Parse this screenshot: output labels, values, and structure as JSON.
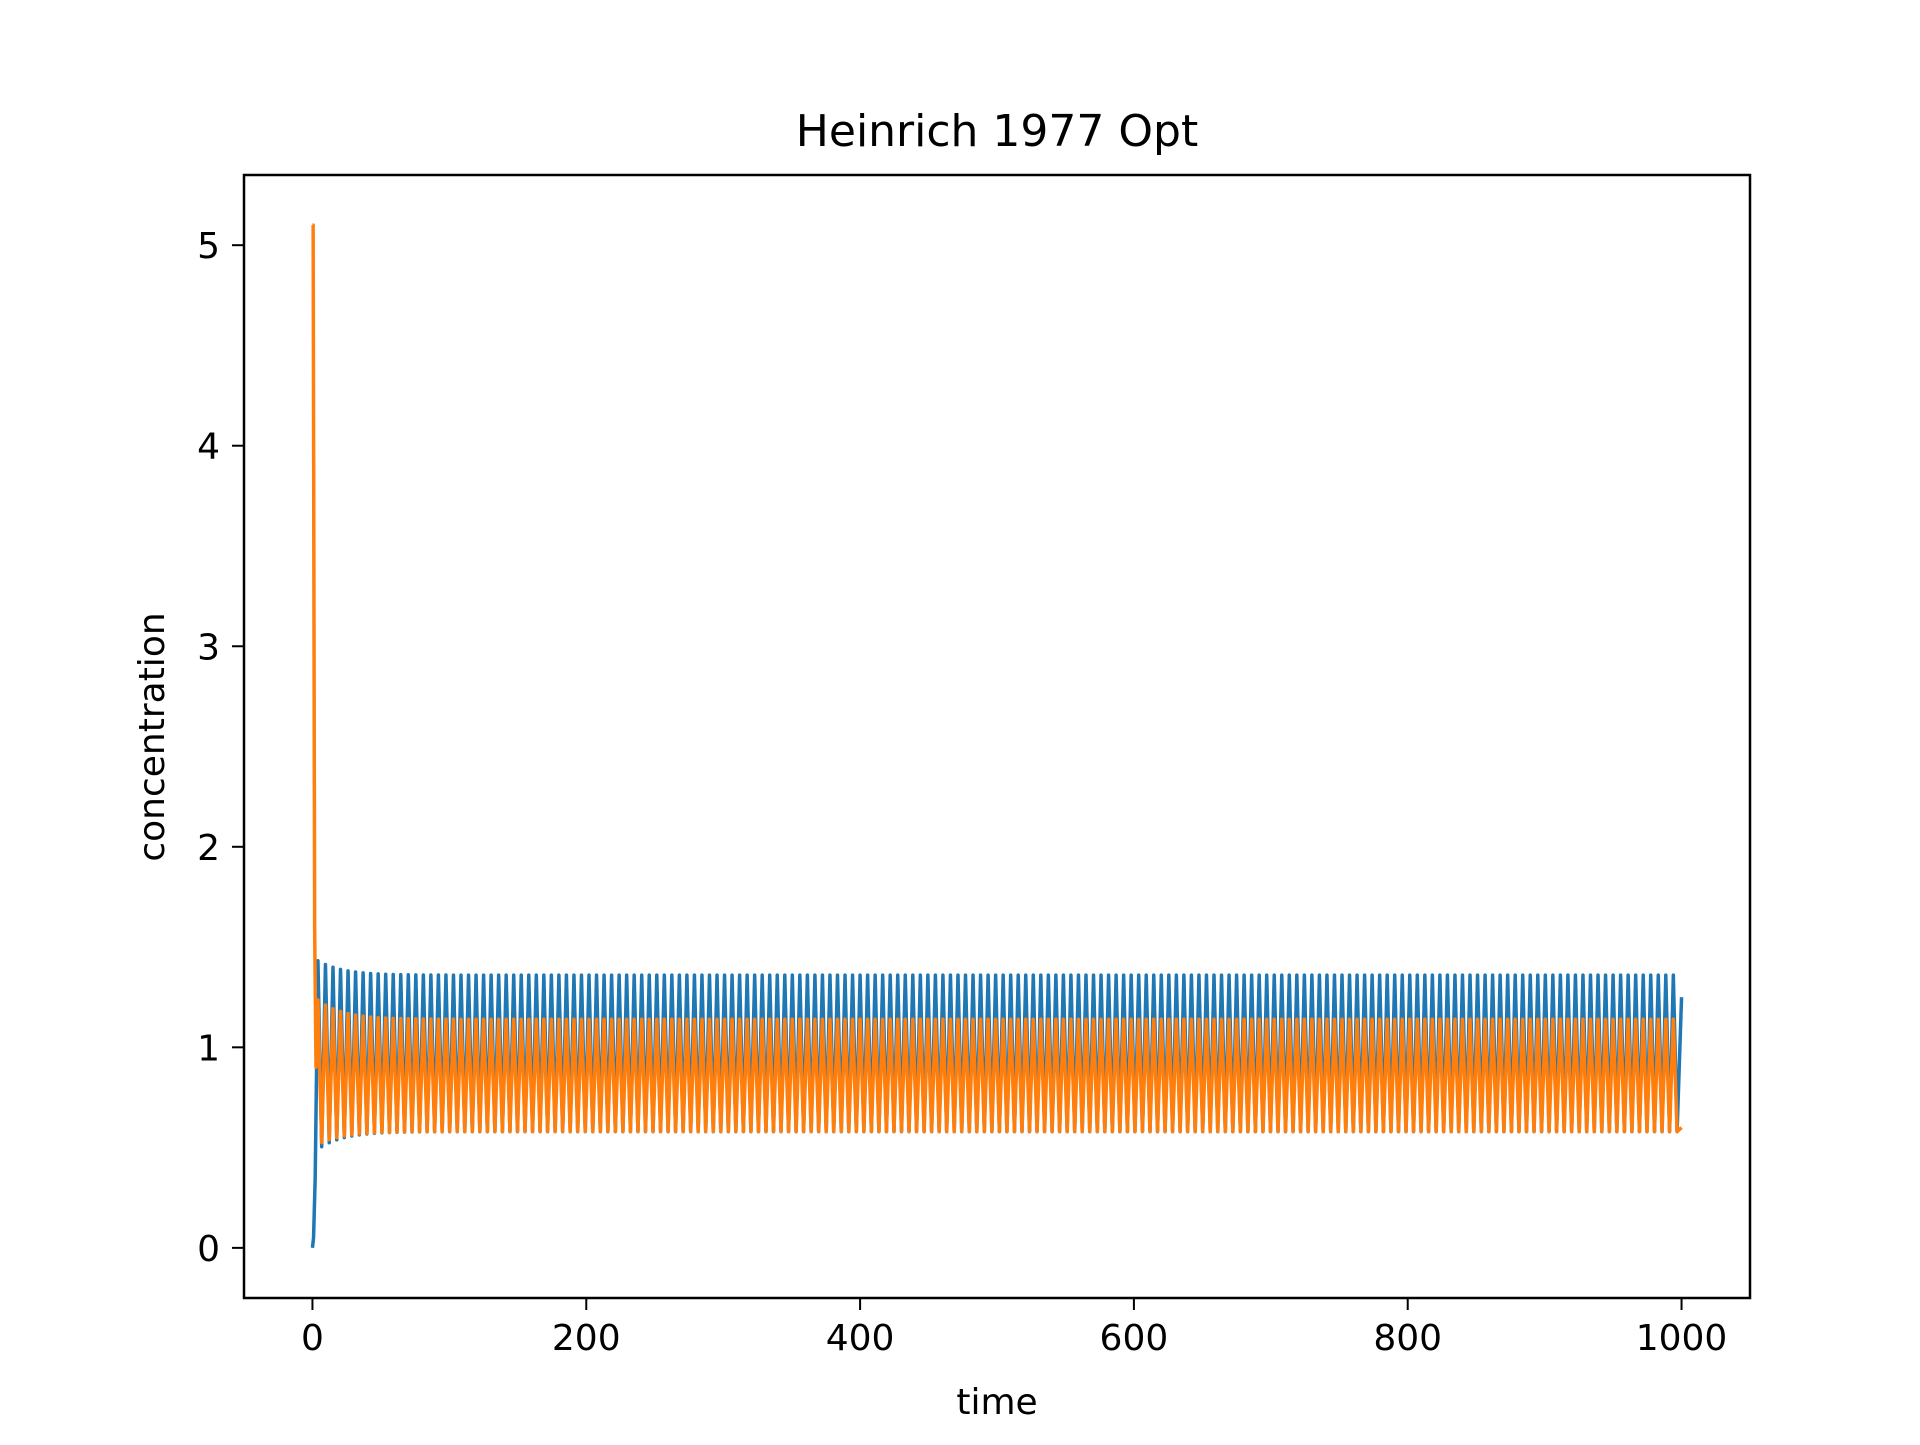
{
  "chart_data": {
    "type": "line",
    "title": "Heinrich 1977 Opt",
    "xlabel": "time",
    "ylabel": "concentration",
    "xlim": [
      -50,
      1050
    ],
    "ylim": [
      -0.25,
      5.35
    ],
    "x_ticks": [
      0,
      200,
      400,
      600,
      800,
      1000
    ],
    "y_ticks": [
      0,
      1,
      2,
      3,
      4,
      5
    ],
    "grid": false,
    "series": [
      {
        "color": "#1f77b4",
        "t_end": 1000,
        "initial_value": 0.0,
        "transient_max": 1.45,
        "transient_min": 0.47,
        "steady_max": 1.36,
        "steady_min": 0.58,
        "oscillation_period": 5.5,
        "final_value": 1.25
      },
      {
        "color": "#ff7f0e",
        "t_end": 1000,
        "initial_value": 5.1,
        "transient_max": 1.26,
        "transient_min": 0.5,
        "steady_max": 1.14,
        "steady_min": 0.58,
        "oscillation_period": 5.5,
        "final_value": 0.6
      }
    ]
  }
}
